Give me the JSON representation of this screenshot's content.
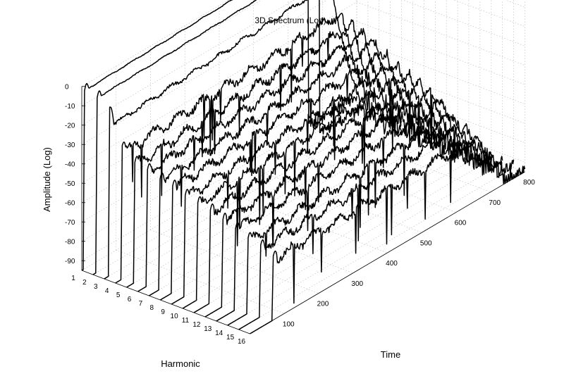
{
  "chart_data": {
    "type": "line",
    "subtype": "3d-waterfall",
    "title": "3D Spectrum (Log)",
    "xlabel": "Time",
    "ylabel": "Harmonic",
    "zlabel": "Amplitude (Log)",
    "xlim": [
      0,
      800
    ],
    "ylim": [
      1,
      16
    ],
    "zlim": [
      -95,
      0
    ],
    "grid": true,
    "x_ticks": [
      "100",
      "200",
      "300",
      "400",
      "500",
      "600",
      "700",
      "800"
    ],
    "y_ticks": [
      "1",
      "2",
      "3",
      "4",
      "5",
      "6",
      "7",
      "8",
      "9",
      "10",
      "11",
      "12",
      "13",
      "14",
      "15",
      "16"
    ],
    "z_ticks": [
      "0",
      "-10",
      "-20",
      "-30",
      "-40",
      "-50",
      "-60",
      "-70",
      "-80",
      "-90"
    ],
    "line_color": "#000000",
    "series": [
      {
        "harmonic": 1,
        "onset": 8,
        "peak": -3,
        "sustain_start": -3,
        "sustain_end": 0,
        "end_value": -90
      },
      {
        "harmonic": 2,
        "onset": 12,
        "peak": -5,
        "sustain_start": -5,
        "sustain_end": -2,
        "end_value": -92
      },
      {
        "harmonic": 3,
        "onset": 16,
        "peak": -8,
        "sustain_start": -18,
        "sustain_end": -11,
        "end_value": -92
      },
      {
        "harmonic": 4,
        "onset": 20,
        "peak": -26,
        "sustain_start": -30,
        "sustain_end": -24,
        "end_value": -92
      },
      {
        "harmonic": 5,
        "onset": 24,
        "peak": -33,
        "sustain_start": -34,
        "sustain_end": -28,
        "end_value": -93
      },
      {
        "harmonic": 6,
        "onset": 28,
        "peak": -35,
        "sustain_start": -36,
        "sustain_end": -31,
        "end_value": -93
      },
      {
        "harmonic": 7,
        "onset": 32,
        "peak": -38,
        "sustain_start": -39,
        "sustain_end": -33,
        "end_value": -93
      },
      {
        "harmonic": 8,
        "onset": 36,
        "peak": -40,
        "sustain_start": -41,
        "sustain_end": -36,
        "end_value": -94
      },
      {
        "harmonic": 9,
        "onset": 40,
        "peak": -43,
        "sustain_start": -44,
        "sustain_end": -39,
        "end_value": -94
      },
      {
        "harmonic": 10,
        "onset": 44,
        "peak": -45,
        "sustain_start": -46,
        "sustain_end": -42,
        "end_value": -94
      },
      {
        "harmonic": 11,
        "onset": 48,
        "peak": -47,
        "sustain_start": -48,
        "sustain_end": -45,
        "end_value": -94
      },
      {
        "harmonic": 12,
        "onset": 52,
        "peak": -50,
        "sustain_start": -51,
        "sustain_end": -48,
        "end_value": -95
      },
      {
        "harmonic": 13,
        "onset": 56,
        "peak": -53,
        "sustain_start": -54,
        "sustain_end": -51,
        "end_value": -95
      },
      {
        "harmonic": 14,
        "onset": 60,
        "peak": -56,
        "sustain_start": -58,
        "sustain_end": -55,
        "end_value": -95
      },
      {
        "harmonic": 15,
        "onset": 64,
        "peak": -58,
        "sustain_start": -60,
        "sustain_end": -58,
        "end_value": -95
      },
      {
        "harmonic": 16,
        "onset": 68,
        "peak": -62,
        "sustain_start": -64,
        "sustain_end": -62,
        "end_value": -95
      }
    ]
  }
}
